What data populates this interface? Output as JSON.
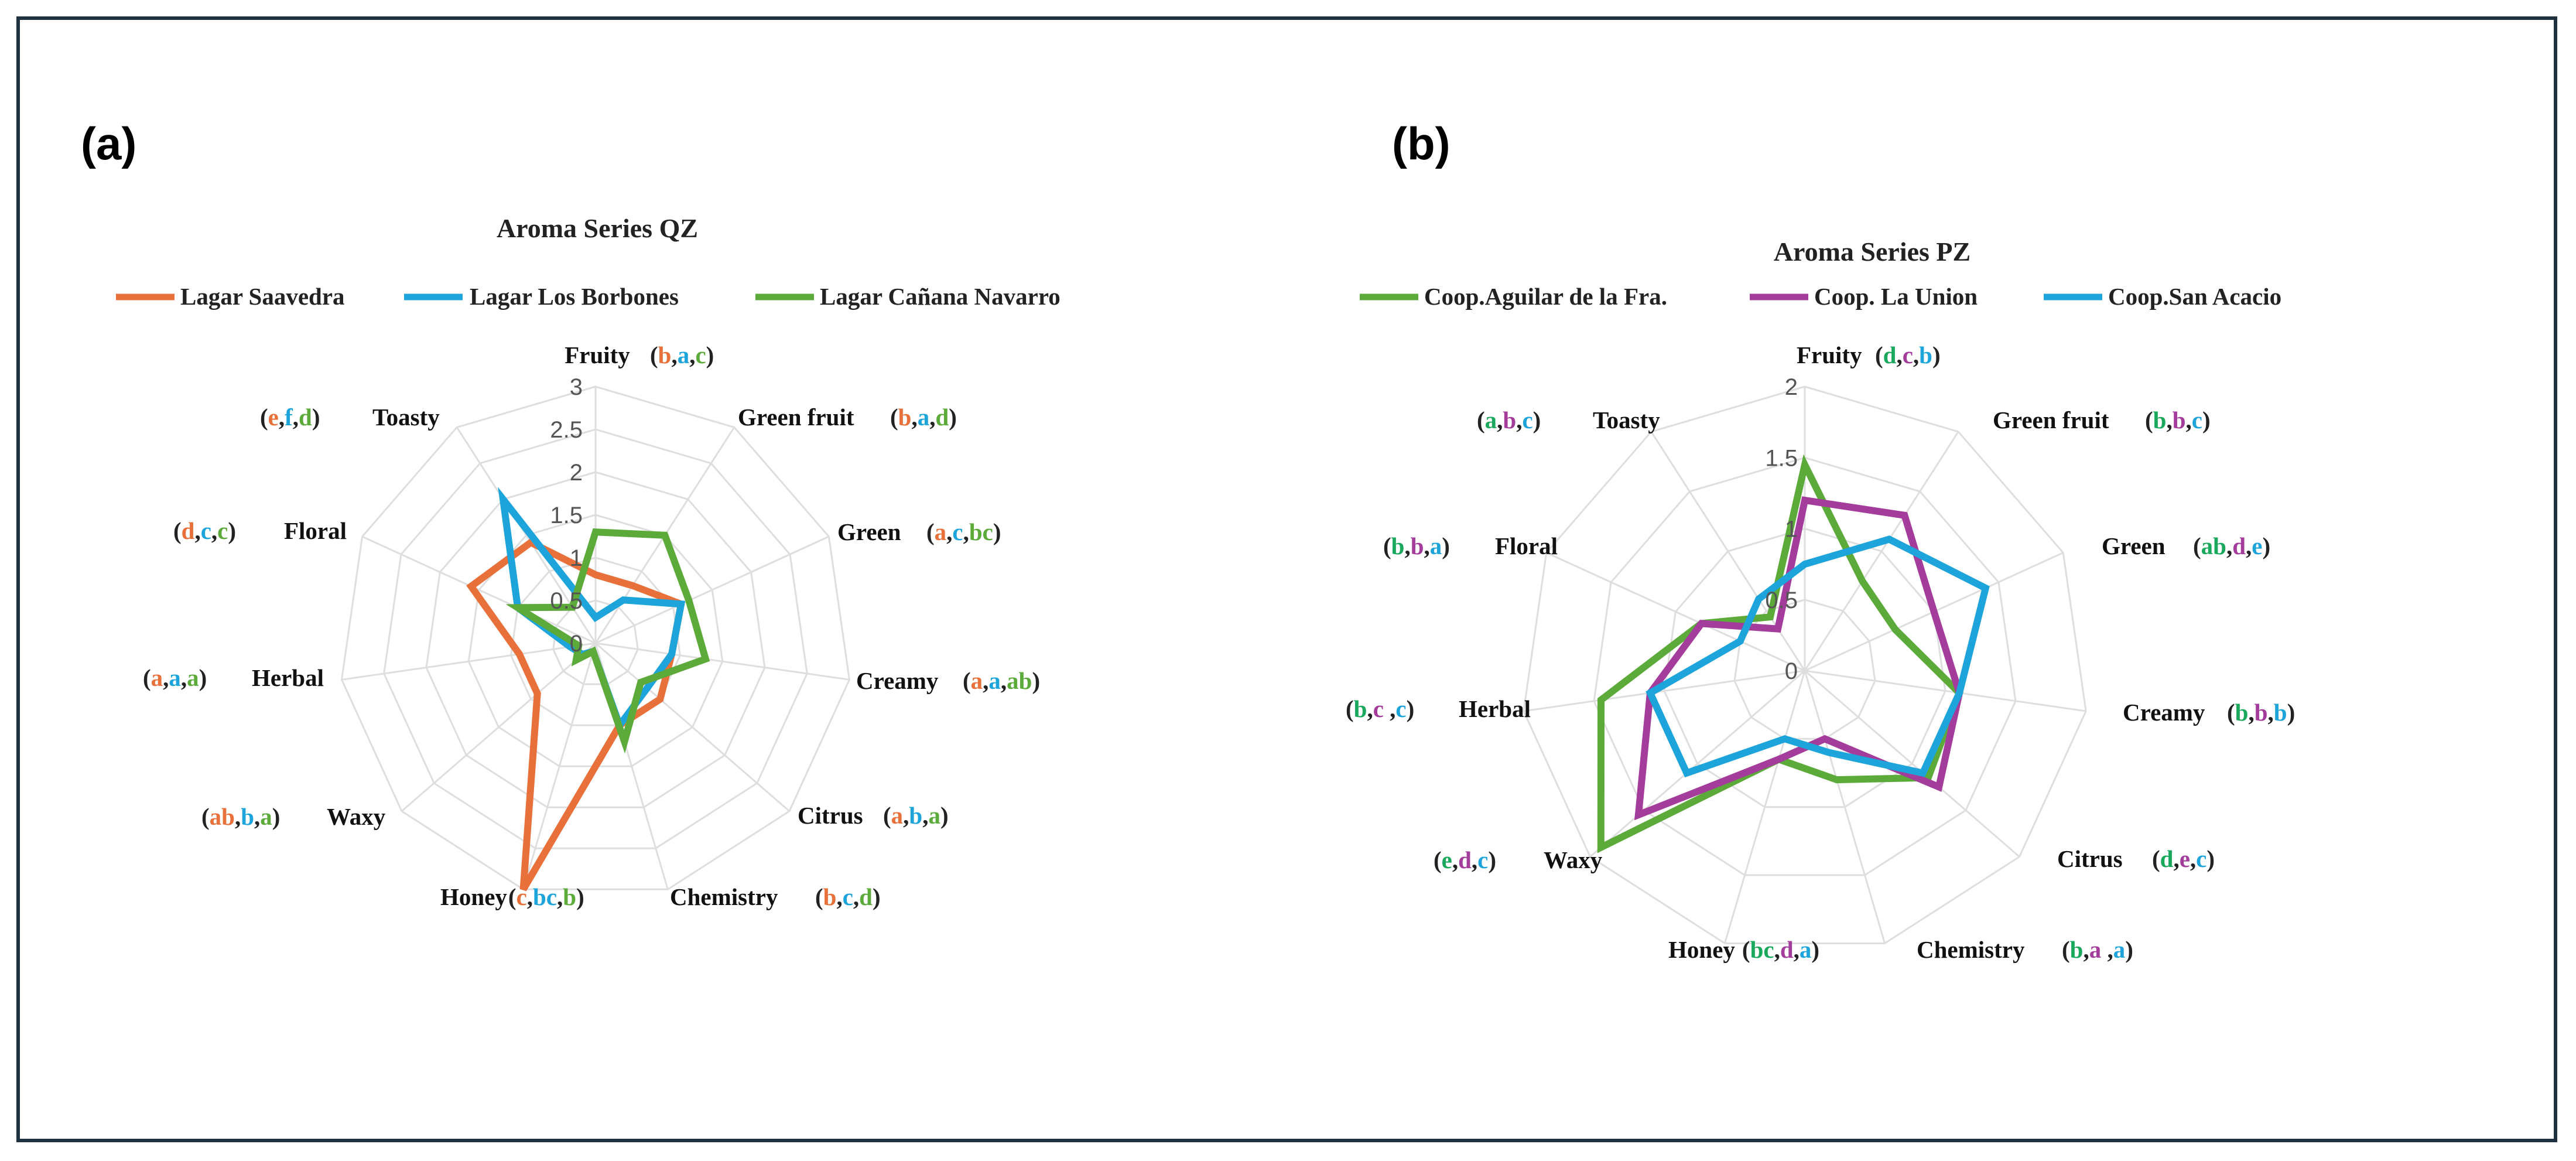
{
  "colors": {
    "orange": "#E8703A",
    "blue": "#1CA4DB",
    "green": "#5BAA3A",
    "purple": "#A43C9C",
    "teal": "#1AA85C",
    "black": "#222222"
  },
  "panels": [
    {
      "label": "(a)"
    },
    {
      "label": "(b)"
    }
  ],
  "chart_data": [
    {
      "type": "radar",
      "title": "Aroma Series QZ",
      "axes": [
        "Fruity",
        "Green fruit",
        "Green",
        "Creamy",
        "Citrus",
        "Chemistry",
        "Honey",
        "Waxy",
        "Herbal",
        "Floral",
        "Toasty"
      ],
      "rlim": [
        0,
        3
      ],
      "ticks": [
        "0",
        "0.5",
        "1",
        "1.5",
        "2",
        "2.5",
        "3"
      ],
      "series": [
        {
          "name": "Lagar Saavedra",
          "color": "orange",
          "values": [
            0.8,
            0.8,
            1.1,
            0.9,
            1.0,
            1.0,
            3.0,
            0.9,
            0.9,
            1.6,
            1.4
          ]
        },
        {
          "name": "Lagar Los Borbones",
          "color": "blue",
          "values": [
            0.3,
            0.6,
            1.1,
            0.9,
            0.8,
            1.0,
            0.1,
            0.2,
            0.3,
            1.0,
            2.0
          ]
        },
        {
          "name": "Lagar Cañana Navarro",
          "color": "green",
          "values": [
            1.3,
            1.5,
            1.2,
            1.3,
            0.7,
            1.2,
            0.1,
            0.3,
            0.2,
            1.0,
            0.5
          ]
        }
      ],
      "annotations": [
        {
          "axis": "Fruity",
          "text": "Fruity",
          "letters": [
            {
              "t": "b",
              "c": "orange"
            },
            {
              "t": "a",
              "c": "blue"
            },
            {
              "t": "c",
              "c": "green"
            }
          ]
        },
        {
          "axis": "Green fruit",
          "text": "Green fruit",
          "letters": [
            {
              "t": "b",
              "c": "orange"
            },
            {
              "t": "a",
              "c": "blue"
            },
            {
              "t": "d",
              "c": "green"
            }
          ]
        },
        {
          "axis": "Green",
          "text": "Green",
          "letters": [
            {
              "t": "a",
              "c": "orange"
            },
            {
              "t": "c",
              "c": "blue"
            },
            {
              "t": "bc",
              "c": "green"
            }
          ]
        },
        {
          "axis": "Creamy",
          "text": "Creamy",
          "letters": [
            {
              "t": "a",
              "c": "orange"
            },
            {
              "t": "a",
              "c": "blue"
            },
            {
              "t": "ab",
              "c": "green"
            }
          ]
        },
        {
          "axis": "Citrus",
          "text": "Citrus",
          "letters": [
            {
              "t": "a",
              "c": "orange"
            },
            {
              "t": "b",
              "c": "blue"
            },
            {
              "t": "a",
              "c": "green"
            }
          ]
        },
        {
          "axis": "Chemistry",
          "text": "Chemistry",
          "letters": [
            {
              "t": "b",
              "c": "orange"
            },
            {
              "t": "c",
              "c": "blue"
            },
            {
              "t": "d",
              "c": "green"
            }
          ]
        },
        {
          "axis": "Honey",
          "text": "Honey",
          "letters": [
            {
              "t": "c",
              "c": "orange"
            },
            {
              "t": "bc",
              "c": "blue"
            },
            {
              "t": "b",
              "c": "green"
            }
          ]
        },
        {
          "axis": "Waxy",
          "text": "Waxy",
          "letters": [
            {
              "t": "ab",
              "c": "orange"
            },
            {
              "t": "b",
              "c": "blue"
            },
            {
              "t": "a",
              "c": "green"
            }
          ]
        },
        {
          "axis": "Herbal",
          "text": "Herbal",
          "letters": [
            {
              "t": "a",
              "c": "orange"
            },
            {
              "t": "a",
              "c": "blue"
            },
            {
              "t": "a",
              "c": "green"
            }
          ]
        },
        {
          "axis": "Floral",
          "text": "Floral",
          "letters": [
            {
              "t": "d",
              "c": "orange"
            },
            {
              "t": "c",
              "c": "blue"
            },
            {
              "t": "c",
              "c": "green"
            }
          ]
        },
        {
          "axis": "Toasty",
          "text": "Toasty",
          "letters": [
            {
              "t": "e",
              "c": "orange"
            },
            {
              "t": "f",
              "c": "blue"
            },
            {
              "t": "d",
              "c": "green"
            }
          ]
        }
      ]
    },
    {
      "type": "radar",
      "title": "Aroma Series PZ",
      "axes": [
        "Fruity",
        "Green fruit",
        "Green",
        "Creamy",
        "Citrus",
        "Chemistry",
        "Honey",
        "Waxy",
        "Herbal",
        "Floral",
        "Toasty"
      ],
      "rlim": [
        0,
        2
      ],
      "ticks": [
        "0",
        "0.5",
        "1",
        "1.5",
        "2"
      ],
      "series": [
        {
          "name": "Coop.Aguilar de la Fra.",
          "color": "green",
          "values": [
            1.45,
            0.75,
            0.7,
            1.1,
            1.15,
            0.8,
            0.65,
            1.9,
            1.45,
            0.8,
            0.45
          ]
        },
        {
          "name": "Coop. La Union",
          "color": "purple",
          "values": [
            1.2,
            1.3,
            1.0,
            1.1,
            1.25,
            0.5,
            0.65,
            1.55,
            1.1,
            0.8,
            0.35
          ]
        },
        {
          "name": "Coop.San Acacio",
          "color": "blue",
          "values": [
            0.75,
            1.1,
            1.4,
            1.1,
            1.1,
            0.6,
            0.5,
            1.1,
            1.1,
            0.5,
            0.6
          ]
        }
      ],
      "annotations": [
        {
          "axis": "Fruity",
          "text": "Fruity",
          "letters": [
            {
              "t": "d",
              "c": "teal"
            },
            {
              "t": "c",
              "c": "purple"
            },
            {
              "t": "b",
              "c": "blue"
            }
          ]
        },
        {
          "axis": "Green fruit",
          "text": "Green fruit",
          "letters": [
            {
              "t": "b",
              "c": "teal"
            },
            {
              "t": "b",
              "c": "purple"
            },
            {
              "t": "c",
              "c": "blue"
            }
          ]
        },
        {
          "axis": "Green",
          "text": "Green",
          "letters": [
            {
              "t": "ab",
              "c": "teal"
            },
            {
              "t": "d",
              "c": "purple"
            },
            {
              "t": "e",
              "c": "blue"
            }
          ]
        },
        {
          "axis": "Creamy",
          "text": "Creamy",
          "letters": [
            {
              "t": "b",
              "c": "teal"
            },
            {
              "t": "b",
              "c": "purple"
            },
            {
              "t": "b",
              "c": "blue"
            }
          ]
        },
        {
          "axis": "Citrus",
          "text": "Citrus",
          "letters": [
            {
              "t": "d",
              "c": "teal"
            },
            {
              "t": "e",
              "c": "purple"
            },
            {
              "t": "c",
              "c": "blue"
            }
          ]
        },
        {
          "axis": "Chemistry",
          "text": "Chemistry",
          "letters": [
            {
              "t": "b",
              "c": "teal"
            },
            {
              "t": "a ",
              "c": "purple"
            },
            {
              "t": "a",
              "c": "blue"
            }
          ]
        },
        {
          "axis": "Honey",
          "text": "Honey",
          "letters": [
            {
              "t": "bc",
              "c": "teal"
            },
            {
              "t": "d",
              "c": "purple"
            },
            {
              "t": "a",
              "c": "blue"
            }
          ]
        },
        {
          "axis": "Waxy",
          "text": "Waxy",
          "letters": [
            {
              "t": "e",
              "c": "teal"
            },
            {
              "t": "d",
              "c": "purple"
            },
            {
              "t": "c",
              "c": "blue"
            }
          ]
        },
        {
          "axis": "Herbal",
          "text": "Herbal",
          "letters": [
            {
              "t": "b",
              "c": "teal"
            },
            {
              "t": "c ",
              "c": "purple"
            },
            {
              "t": "c",
              "c": "blue"
            }
          ]
        },
        {
          "axis": "Floral",
          "text": "Floral",
          "letters": [
            {
              "t": "b",
              "c": "teal"
            },
            {
              "t": "b",
              "c": "purple"
            },
            {
              "t": "a",
              "c": "blue"
            }
          ]
        },
        {
          "axis": "Toasty",
          "text": "Toasty",
          "letters": [
            {
              "t": "a",
              "c": "teal"
            },
            {
              "t": "b",
              "c": "purple"
            },
            {
              "t": "c",
              "c": "blue"
            }
          ]
        }
      ]
    }
  ]
}
